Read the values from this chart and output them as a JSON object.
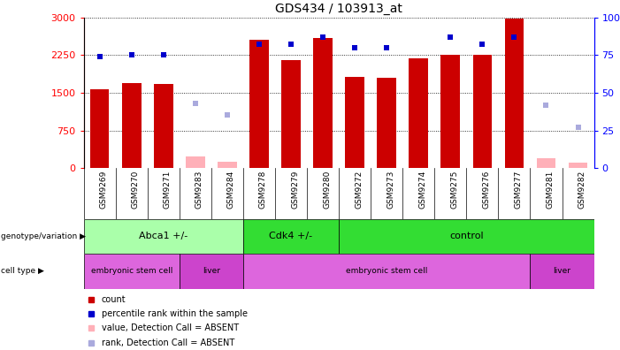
{
  "title": "GDS434 / 103913_at",
  "samples": [
    "GSM9269",
    "GSM9270",
    "GSM9271",
    "GSM9283",
    "GSM9284",
    "GSM9278",
    "GSM9279",
    "GSM9280",
    "GSM9272",
    "GSM9273",
    "GSM9274",
    "GSM9275",
    "GSM9276",
    "GSM9277",
    "GSM9281",
    "GSM9282"
  ],
  "counts": [
    1570,
    1700,
    1670,
    null,
    null,
    2550,
    2150,
    2600,
    1820,
    1790,
    2180,
    2250,
    2250,
    2980,
    null,
    null
  ],
  "absent_counts": [
    null,
    null,
    null,
    230,
    130,
    null,
    null,
    null,
    null,
    null,
    null,
    null,
    null,
    null,
    190,
    105
  ],
  "ranks": [
    74,
    75,
    75,
    null,
    null,
    82,
    82,
    87,
    80,
    80,
    null,
    87,
    82,
    87,
    null,
    null
  ],
  "absent_ranks": [
    null,
    null,
    null,
    43,
    35,
    null,
    null,
    null,
    null,
    null,
    null,
    null,
    null,
    null,
    42,
    27
  ],
  "ylim_left": [
    0,
    3000
  ],
  "ylim_right": [
    0,
    100
  ],
  "yticks_left": [
    0,
    750,
    1500,
    2250,
    3000
  ],
  "ytick_labels_left": [
    "0",
    "750",
    "1500",
    "2250",
    "3000"
  ],
  "yticks_right": [
    0,
    25,
    50,
    75,
    100
  ],
  "ytick_labels_right": [
    "0",
    "25",
    "50",
    "75",
    "100%"
  ],
  "bar_color": "#cc0000",
  "absent_bar_color": "#ffb0b8",
  "rank_color": "#0000cc",
  "absent_rank_color": "#aaaadd",
  "genotype_groups": [
    {
      "label": "Abca1 +/-",
      "start": 0,
      "end": 4,
      "color": "#aaffaa"
    },
    {
      "label": "Cdk4 +/-",
      "start": 5,
      "end": 7,
      "color": "#33dd33"
    },
    {
      "label": "control",
      "start": 8,
      "end": 15,
      "color": "#33dd33"
    }
  ],
  "celltype_groups": [
    {
      "label": "embryonic stem cell",
      "start": 0,
      "end": 2,
      "color": "#dd66dd"
    },
    {
      "label": "liver",
      "start": 3,
      "end": 4,
      "color": "#cc44cc"
    },
    {
      "label": "embryonic stem cell",
      "start": 5,
      "end": 13,
      "color": "#dd66dd"
    },
    {
      "label": "liver",
      "start": 14,
      "end": 15,
      "color": "#cc44cc"
    }
  ],
  "legend_items": [
    {
      "label": "count",
      "color": "#cc0000"
    },
    {
      "label": "percentile rank within the sample",
      "color": "#0000cc"
    },
    {
      "label": "value, Detection Call = ABSENT",
      "color": "#ffb0b8"
    },
    {
      "label": "rank, Detection Call = ABSENT",
      "color": "#aaaadd"
    }
  ],
  "bg_color": "#ffffff",
  "plot_bg_color": "#ffffff",
  "xtick_bg_color": "#cccccc",
  "grid_color": "#000000"
}
